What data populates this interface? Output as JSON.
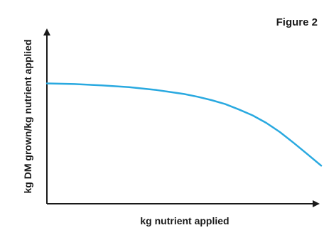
{
  "figure_label": "Figure 2",
  "colors": {
    "background": "#ffffff",
    "axis": "#1a1a1a",
    "curve": "#29a9e0",
    "text": "#1a1a1a"
  },
  "chart_data": {
    "type": "line",
    "title": "",
    "xlabel": "kg nutrient applied",
    "ylabel": "kg DM grown/kg nutrient applied",
    "xlim": [
      0,
      100
    ],
    "ylim": [
      0,
      100
    ],
    "grid": false,
    "legend": "none",
    "series": [
      {
        "x": [
          0,
          10,
          20,
          30,
          40,
          50,
          55,
          60,
          65,
          70,
          75,
          80,
          85,
          90,
          95,
          100
        ],
        "y": [
          69.2,
          68.8,
          68.1,
          67.0,
          65.4,
          63.1,
          61.5,
          59.6,
          57.3,
          54.2,
          50.8,
          46.5,
          41.2,
          35.0,
          28.5,
          21.9
        ]
      }
    ]
  }
}
